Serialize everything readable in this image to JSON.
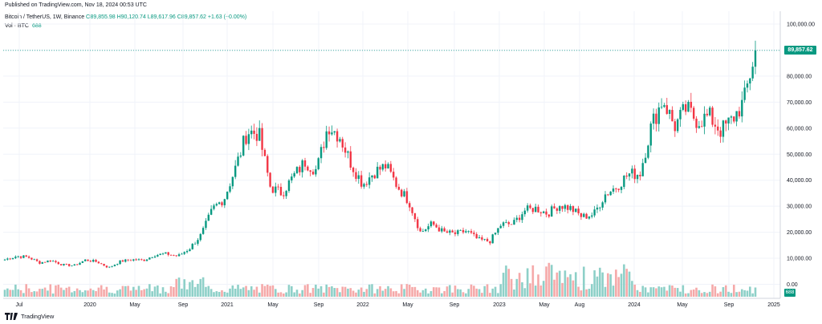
{
  "header": {
    "published": "Published on TradingView.com, Nov 18, 2024 00:53 UTC",
    "symbol": "Bitcoin / TetherUS, 1W, Binance",
    "o": "O89,855.98",
    "h": "H90,120.74",
    "l": "L89,617.96",
    "c": "C89,857.62",
    "change": "+1.63 (+0.00%)",
    "vol_label": "Vol · BTC",
    "vol_value": "688"
  },
  "footer": {
    "brand": "TradingView"
  },
  "colors": {
    "up": "#089981",
    "down": "#F23645",
    "vol_up": "#8ED0C8",
    "vol_down": "#F5A9A9",
    "grid": "#F0F3FA",
    "last_price_line": "#089981"
  },
  "chart_data": {
    "type": "candlestick",
    "title": "Bitcoin / TetherUS, 1W, Binance",
    "x_tick_labels": [
      "Jul",
      "2020",
      "May",
      "Sep",
      "2021",
      "May",
      "Sep",
      "2022",
      "May",
      "Sep",
      "2023",
      "May",
      "Aug",
      "2024",
      "May",
      "Sep",
      "2025"
    ],
    "y_tick_labels": [
      "100,000.00",
      "90,000.00",
      "80,000.00",
      "70,000.00",
      "60,000.00",
      "50,000.00",
      "40,000.00",
      "30,000.00",
      "20,000.00",
      "10,000.00",
      "0.00"
    ],
    "y_ticks": [
      100000,
      90000,
      80000,
      70000,
      60000,
      50000,
      40000,
      30000,
      20000,
      10000,
      0
    ],
    "ylim": [
      0,
      105000
    ],
    "last_price": 89857.62,
    "last_price_label": "89,857.62",
    "last_volume_label": "688",
    "grid": true,
    "weekly_close_approx": {
      "x": [
        "2019-06",
        "2019-07",
        "2019-08",
        "2019-09",
        "2019-10",
        "2019-11",
        "2019-12",
        "2020-01",
        "2020-02",
        "2020-03",
        "2020-04",
        "2020-05",
        "2020-06",
        "2020-07",
        "2020-08",
        "2020-09",
        "2020-10",
        "2020-11",
        "2020-12",
        "2021-01",
        "2021-02",
        "2021-03",
        "2021-04",
        "2021-05",
        "2021-06",
        "2021-07",
        "2021-08",
        "2021-09",
        "2021-10",
        "2021-11",
        "2021-12",
        "2022-01",
        "2022-02",
        "2022-03",
        "2022-04",
        "2022-05",
        "2022-06",
        "2022-07",
        "2022-08",
        "2022-09",
        "2022-10",
        "2022-11",
        "2022-12",
        "2023-01",
        "2023-02",
        "2023-03",
        "2023-04",
        "2023-05",
        "2023-06",
        "2023-07",
        "2023-08",
        "2023-09",
        "2023-10",
        "2023-11",
        "2023-12",
        "2024-01",
        "2024-02",
        "2024-03",
        "2024-04",
        "2024-05",
        "2024-06",
        "2024-07",
        "2024-08",
        "2024-09",
        "2024-10",
        "2024-11"
      ],
      "close": [
        9500,
        10800,
        10500,
        8300,
        9200,
        7500,
        7200,
        9400,
        8600,
        6400,
        8800,
        9500,
        9200,
        11300,
        11700,
        10800,
        13800,
        19000,
        29000,
        33000,
        45000,
        58800,
        57800,
        37300,
        35000,
        41500,
        47100,
        43800,
        61300,
        57000,
        46300,
        38500,
        43200,
        45500,
        37700,
        31800,
        19900,
        23300,
        20000,
        19400,
        20500,
        17100,
        16500,
        23100,
        23100,
        28400,
        29200,
        27200,
        30500,
        29200,
        25900,
        26900,
        34600,
        37700,
        42300,
        42600,
        61100,
        71300,
        60600,
        67500,
        62700,
        64600,
        59000,
        63300,
        70200,
        89857
      ]
    }
  }
}
